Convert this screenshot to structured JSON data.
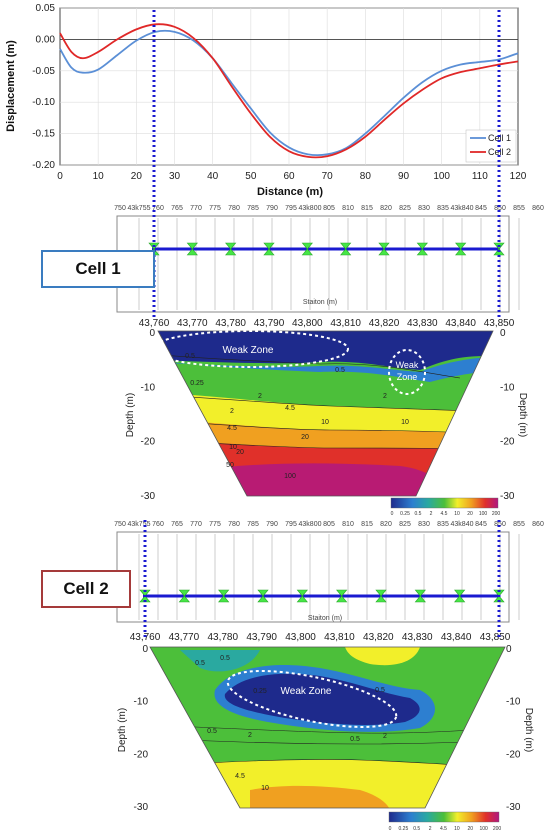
{
  "chart_data": [
    {
      "type": "line",
      "xlabel": "Distance (m)",
      "ylabel": "Displacement (m)",
      "xlim": [
        0,
        120
      ],
      "ylim": [
        -0.2,
        0.05
      ],
      "xticks": [
        "0",
        "10",
        "20",
        "30",
        "40",
        "50",
        "60",
        "70",
        "80",
        "90",
        "100",
        "110",
        "120"
      ],
      "yticks": [
        "0.05",
        "0.00",
        "-0.05",
        "-0.10",
        "-0.15",
        "-0.20"
      ],
      "legend_position": "bottom-right",
      "series": [
        {
          "name": "Cell 1",
          "color": "#5b8fd6",
          "x": [
            0,
            3,
            6,
            10,
            15,
            20,
            25,
            30,
            35,
            40,
            45,
            50,
            55,
            60,
            65,
            70,
            75,
            80,
            85,
            90,
            95,
            100,
            105,
            110,
            115,
            120
          ],
          "y": [
            -0.015,
            -0.045,
            -0.053,
            -0.048,
            -0.025,
            -0.002,
            0.012,
            0.012,
            -0.002,
            -0.03,
            -0.07,
            -0.11,
            -0.148,
            -0.172,
            -0.183,
            -0.183,
            -0.173,
            -0.15,
            -0.122,
            -0.093,
            -0.068,
            -0.05,
            -0.04,
            -0.036,
            -0.032,
            -0.022
          ]
        },
        {
          "name": "Cell 2",
          "color": "#e02828",
          "x": [
            0,
            3,
            6,
            10,
            15,
            20,
            25,
            30,
            35,
            40,
            45,
            50,
            55,
            60,
            65,
            70,
            75,
            80,
            85,
            90,
            95,
            100,
            105,
            110,
            115,
            120
          ],
          "y": [
            0.01,
            -0.02,
            -0.03,
            -0.02,
            0.0,
            0.016,
            0.024,
            0.02,
            0.002,
            -0.03,
            -0.075,
            -0.118,
            -0.155,
            -0.178,
            -0.187,
            -0.186,
            -0.175,
            -0.155,
            -0.128,
            -0.102,
            -0.08,
            -0.062,
            -0.052,
            -0.046,
            -0.04,
            -0.035
          ]
        }
      ]
    },
    {
      "type": "diagram",
      "label": "Cell 1",
      "top_stations": [
        "750",
        "43k755",
        "760",
        "765",
        "770",
        "775",
        "780",
        "785",
        "790",
        "795",
        "43k800",
        "805",
        "810",
        "815",
        "820",
        "825",
        "830",
        "835",
        "43k840",
        "845",
        "850",
        "855",
        "860"
      ],
      "axis_label": "Staiton (m)",
      "bottom_stations": [
        "43,760",
        "43,770",
        "43,780",
        "43,790",
        "43,800",
        "43,810",
        "43,820",
        "43,830",
        "43,840",
        "43,850"
      ],
      "depth_label": "Depth (m)",
      "depth_ticks": [
        "0",
        "-10",
        "-20",
        "-30"
      ],
      "zones": [
        "Weak Zone",
        "Weak Zone"
      ],
      "contour_labels": [
        "0.5",
        "0.25",
        "0.5",
        "2",
        "2",
        "4.5",
        "10",
        "10",
        "20",
        "50",
        "100",
        "2",
        "4.5",
        "10",
        "20"
      ],
      "colorbar_ticks": [
        "0",
        "0.25",
        "0.5",
        "2",
        "4.5",
        "10",
        "20",
        "100",
        "200"
      ]
    },
    {
      "type": "diagram",
      "label": "Cell 2",
      "top_stations": [
        "750",
        "43k755",
        "760",
        "765",
        "770",
        "775",
        "780",
        "785",
        "790",
        "795",
        "43k800",
        "805",
        "810",
        "815",
        "820",
        "825",
        "830",
        "835",
        "43k840",
        "845",
        "850",
        "855",
        "860"
      ],
      "axis_label": "Staiton (m)",
      "bottom_stations": [
        "43,760",
        "43,770",
        "43,780",
        "43,790",
        "43,800",
        "43,810",
        "43,820",
        "43,830",
        "43,840",
        "43,850"
      ],
      "depth_label": "Depth (m)",
      "depth_ticks": [
        "0",
        "-10",
        "-20",
        "-30"
      ],
      "zones": [
        "Weak Zone"
      ],
      "contour_labels": [
        "0.5",
        "0.5",
        "0.25",
        "0.5",
        "0.5",
        "0.5",
        "2",
        "2",
        "4.5",
        "10"
      ],
      "colorbar_ticks": [
        "0",
        "0.25",
        "0.5",
        "2",
        "4.5",
        "10",
        "20",
        "100",
        "200"
      ]
    }
  ]
}
